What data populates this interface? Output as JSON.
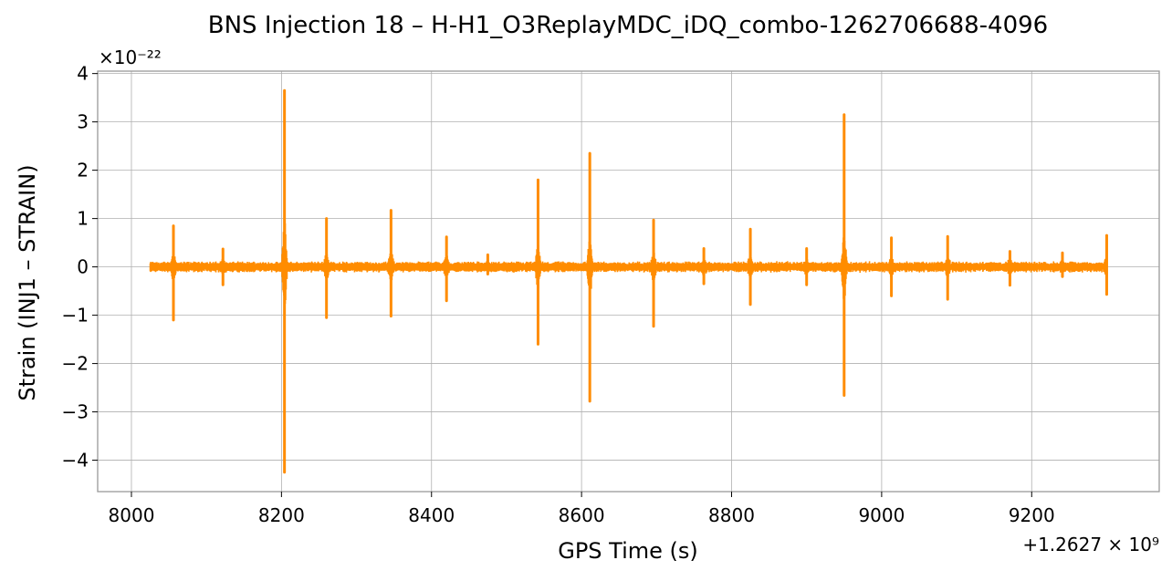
{
  "chart_data": {
    "type": "line",
    "title": "BNS Injection 18 – H-H1_O3ReplayMDC_iDQ_combo-1262706688-4096",
    "xlabel": "GPS Time (s)",
    "ylabel": "Strain (INJ1 – STRAIN)",
    "x_offset_label": "+1.2627 × 10⁹",
    "y_scale_label": "×10⁻²²",
    "xlim": [
      7955,
      9370
    ],
    "ylim": [
      -4.65,
      4.05
    ],
    "x_ticks": [
      8000,
      8200,
      8400,
      8600,
      8800,
      9000,
      9200
    ],
    "y_ticks": [
      -4,
      -3,
      -2,
      -1,
      0,
      1,
      2,
      3,
      4
    ],
    "x_tick_labels": [
      "8000",
      "8200",
      "8400",
      "8600",
      "8800",
      "9000",
      "9200"
    ],
    "y_tick_labels": [
      "−4",
      "−3",
      "−2",
      "−1",
      "0",
      "1",
      "2",
      "3",
      "4"
    ],
    "grid": true,
    "series": [
      {
        "color": "#ff8c00",
        "data_start": 8025,
        "data_end": 9300,
        "baseline_noise": 0.12,
        "glitches": [
          {
            "x": 8056,
            "max": 0.85,
            "min": -1.1
          },
          {
            "x": 8122,
            "max": 0.37,
            "min": -0.37
          },
          {
            "x": 8204,
            "max": 3.65,
            "min": -4.25
          },
          {
            "x": 8260,
            "max": 1.0,
            "min": -1.05
          },
          {
            "x": 8346,
            "max": 1.17,
            "min": -1.02
          },
          {
            "x": 8420,
            "max": 0.62,
            "min": -0.7
          },
          {
            "x": 8475,
            "max": 0.25,
            "min": -0.15
          },
          {
            "x": 8542,
            "max": 1.8,
            "min": -1.6
          },
          {
            "x": 8611,
            "max": 2.35,
            "min": -2.78
          },
          {
            "x": 8696,
            "max": 0.97,
            "min": -1.23
          },
          {
            "x": 8763,
            "max": 0.38,
            "min": -0.35
          },
          {
            "x": 8825,
            "max": 0.78,
            "min": -0.78
          },
          {
            "x": 8900,
            "max": 0.38,
            "min": -0.37
          },
          {
            "x": 8950,
            "max": 3.15,
            "min": -2.66
          },
          {
            "x": 9013,
            "max": 0.6,
            "min": -0.6
          },
          {
            "x": 9088,
            "max": 0.63,
            "min": -0.67
          },
          {
            "x": 9171,
            "max": 0.32,
            "min": -0.38
          },
          {
            "x": 9241,
            "max": 0.29,
            "min": -0.2
          },
          {
            "x": 9300,
            "max": 0.65,
            "min": -0.57
          }
        ]
      }
    ]
  }
}
